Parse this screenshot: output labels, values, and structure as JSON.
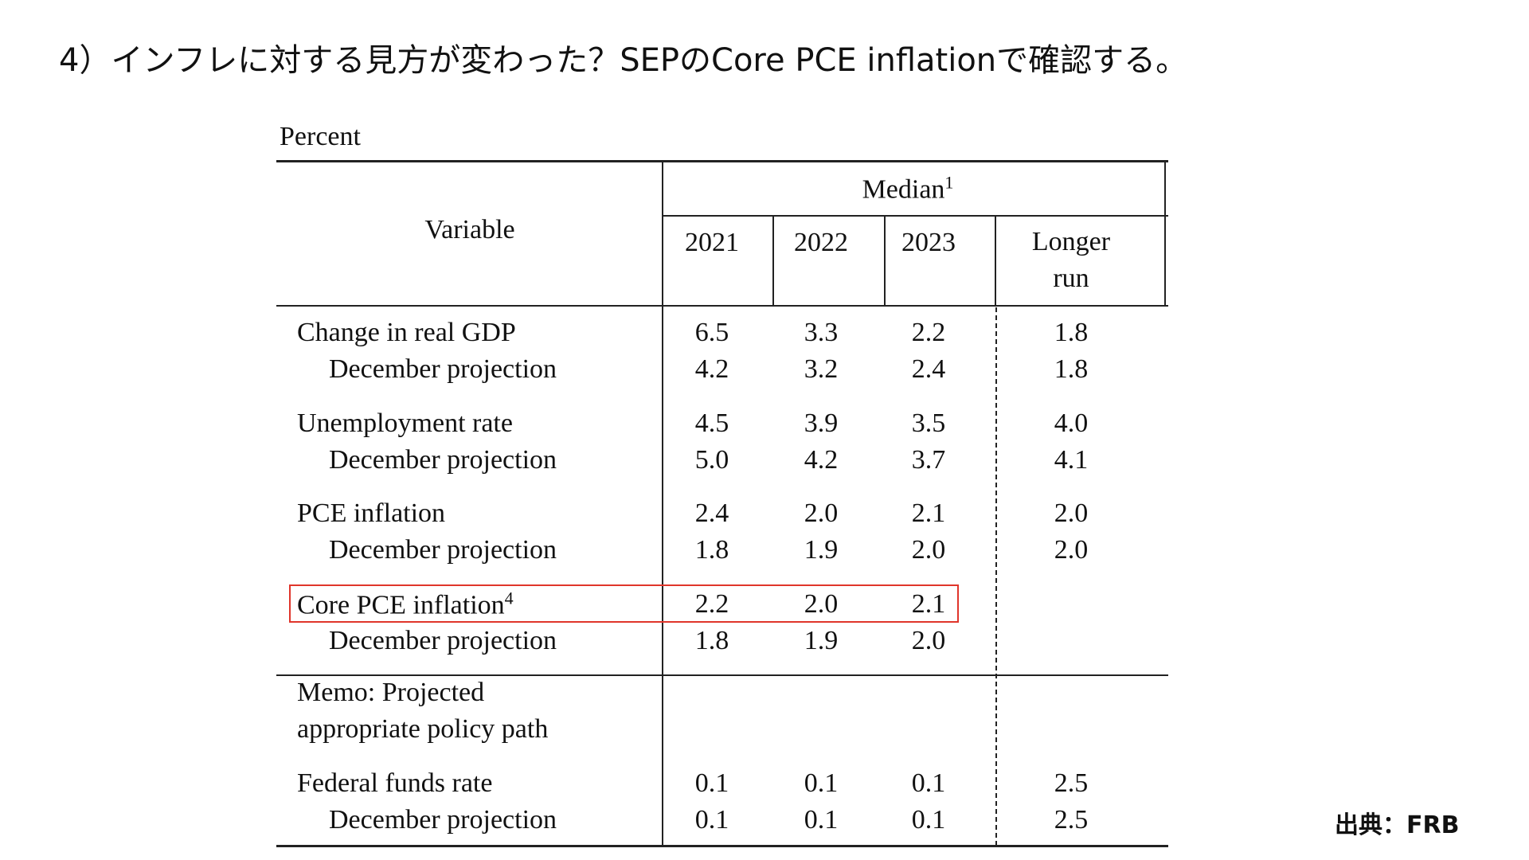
{
  "title": "4）インフレに対する見方が変わった？SEPのCore PCE inflationで確認する。",
  "table": {
    "unit": "Percent",
    "header": {
      "variable": "Variable",
      "group": "Median",
      "group_note": "1",
      "columns": [
        "2021",
        "2022",
        "2023",
        "Longer run"
      ]
    },
    "groups": [
      {
        "label": "Change in real GDP",
        "values": [
          "6.5",
          "3.3",
          "2.2",
          "1.8"
        ],
        "december": {
          "label": "December projection",
          "values": [
            "4.2",
            "3.2",
            "2.4",
            "1.8"
          ]
        }
      },
      {
        "label": "Unemployment rate",
        "values": [
          "4.5",
          "3.9",
          "3.5",
          "4.0"
        ],
        "december": {
          "label": "December projection",
          "values": [
            "5.0",
            "4.2",
            "3.7",
            "4.1"
          ]
        }
      },
      {
        "label": "PCE inflation",
        "values": [
          "2.4",
          "2.0",
          "2.1",
          "2.0"
        ],
        "december": {
          "label": "December projection",
          "values": [
            "1.8",
            "1.9",
            "2.0",
            "2.0"
          ]
        }
      },
      {
        "label": "Core PCE inflation",
        "note": "4",
        "values": [
          "2.2",
          "2.0",
          "2.1"
        ],
        "december": {
          "label": "December projection",
          "values": [
            "1.8",
            "1.9",
            "2.0"
          ]
        }
      }
    ],
    "memo": {
      "lines": [
        "Memo: Projected",
        "appropriate policy path"
      ],
      "groups": [
        {
          "label": "Federal funds rate",
          "values": [
            "0.1",
            "0.1",
            "0.1",
            "2.5"
          ],
          "december": {
            "label": "December projection",
            "values": [
              "0.1",
              "0.1",
              "0.1",
              "2.5"
            ]
          }
        }
      ]
    }
  },
  "source": "出典：FRB"
}
